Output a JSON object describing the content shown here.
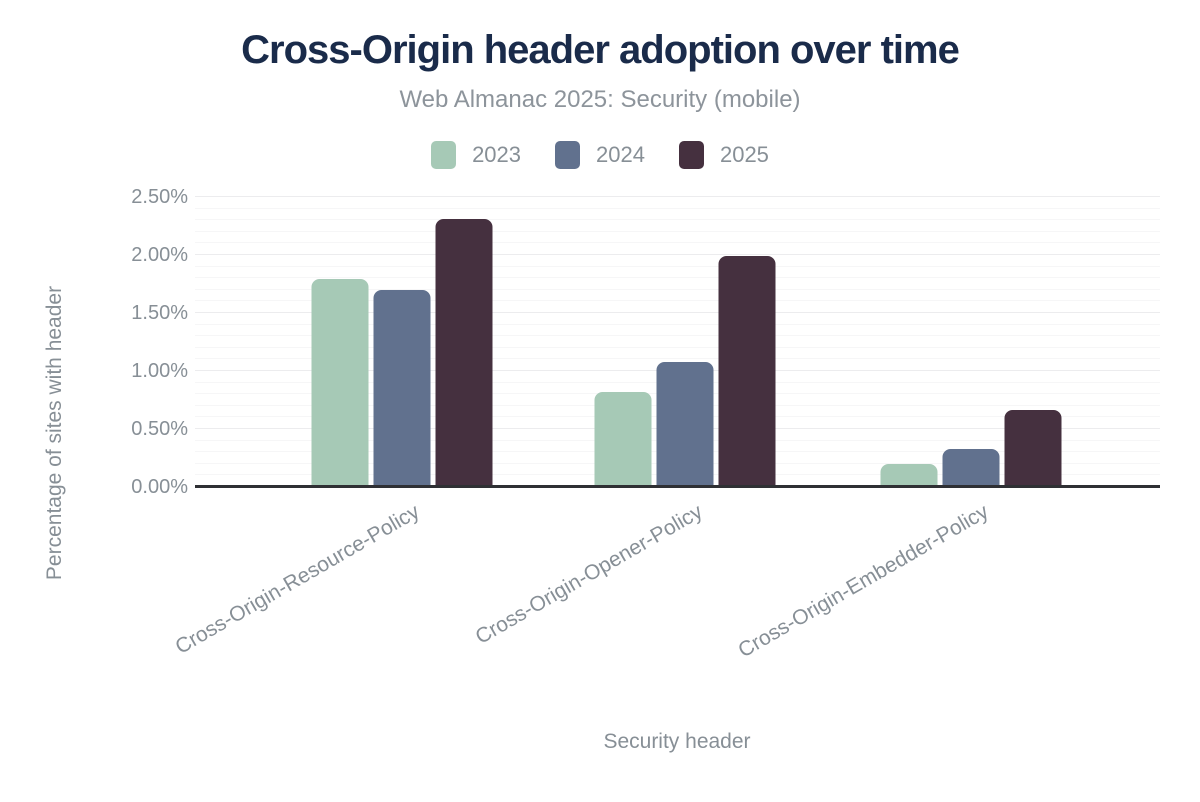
{
  "title": "Cross-Origin header adoption over time",
  "subtitle": "Web Almanac 2025: Security (mobile)",
  "chart_data": {
    "type": "bar",
    "title": "Cross-Origin header adoption over time",
    "subtitle": "Web Almanac 2025: Security (mobile)",
    "categories": [
      "Cross-Origin-Resource-Policy",
      "Cross-Origin-Opener-Policy",
      "Cross-Origin-Embedder-Policy"
    ],
    "series": [
      {
        "name": "2023",
        "color": "#a6c9b6",
        "values": [
          1.79,
          0.82,
          0.2
        ]
      },
      {
        "name": "2024",
        "color": "#61718e",
        "values": [
          1.7,
          1.08,
          0.33
        ]
      },
      {
        "name": "2025",
        "color": "#45303f",
        "values": [
          2.31,
          1.99,
          0.66
        ]
      }
    ],
    "xlabel": "Security header",
    "ylabel": "Percentage of sites with header",
    "ylim": [
      0,
      2.5
    ],
    "yticks": [
      {
        "value": 0,
        "label": "0.00%"
      },
      {
        "value": 0.5,
        "label": "0.50%"
      },
      {
        "value": 1.0,
        "label": "1.00%"
      },
      {
        "value": 1.5,
        "label": "1.50%"
      },
      {
        "value": 2.0,
        "label": "2.00%"
      },
      {
        "value": 2.5,
        "label": "2.50%"
      }
    ],
    "grid": {
      "minor_step": 0.1,
      "major_step": 0.5
    },
    "legend_position": "top",
    "legend_entries": [
      "2023",
      "2024",
      "2025"
    ]
  },
  "colors": {
    "background": "#ffffff",
    "title": "#1a2b4a",
    "subtitle": "#8d949b",
    "axis_text": "#878f96",
    "baseline": "#2f3034",
    "grid_major": "#ececee",
    "grid_minor": "#f6f6f7",
    "series_2023": "#a6c9b6",
    "series_2024": "#61718e",
    "series_2025": "#45303f"
  }
}
